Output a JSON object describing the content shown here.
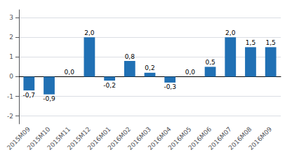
{
  "chart_data": {
    "type": "bar",
    "categories": [
      "2015M09",
      "2015M10",
      "2015M11",
      "2015M12",
      "2016M01",
      "2016M02",
      "2016M03",
      "2016M04",
      "2016M05",
      "2016M06",
      "2016M07",
      "2016M08",
      "2016M09"
    ],
    "values": [
      -0.7,
      -0.9,
      0.0,
      2.0,
      -0.2,
      0.8,
      0.2,
      -0.3,
      0.0,
      0.5,
      2.0,
      1.5,
      1.5
    ],
    "value_labels": [
      "-0,7",
      "-0,9",
      "0,0",
      "2,0",
      "-0,2",
      "0,8",
      "0,2",
      "-0,3",
      "0,0",
      "0,5",
      "2,0",
      "1,5",
      "1,5"
    ],
    "data_labels": true,
    "color": "#2070b4",
    "ylim": [
      -2.4,
      3.4
    ],
    "yticks": [
      -2,
      -1,
      0,
      1,
      2,
      3
    ],
    "grid": true
  }
}
